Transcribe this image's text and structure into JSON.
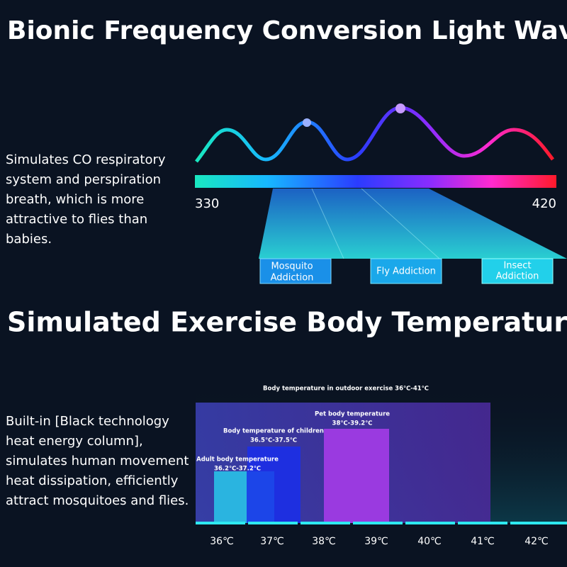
{
  "section1": {
    "title": "Bionic Frequency Conversion Light Wave",
    "description_lines": [
      "Simulates CO  respiratory",
      "system and perspiration",
      "breath, which is more",
      "attractive to flies than",
      "babies."
    ],
    "scale_min": "330",
    "scale_max": "420",
    "tags": [
      [
        "Mosquito",
        "Addiction"
      ],
      [
        "Fly Addiction"
      ],
      [
        "Insect",
        "Addiction"
      ]
    ]
  },
  "section2": {
    "title": "Simulated Exercise Body Temperature",
    "description_lines": [
      "Built-in [Black technology",
      "heat energy column],",
      "simulates human movement",
      "heat dissipation, efficiently",
      "attract mosquitoes and flies."
    ],
    "chart_title": "Body temperature in outdoor exercise 36℃-41℃",
    "bars": [
      {
        "label": "Adult body temperature",
        "range": "36.2℃-37.2℃"
      },
      {
        "label": "Body temperature of children",
        "range": "36.5℃-37.5℃"
      },
      {
        "label": "Pet body temperature",
        "range": "38℃-39.2℃"
      }
    ],
    "axis_labels": [
      "36℃",
      "37℃",
      "38℃",
      "39℃",
      "40℃",
      "41℃",
      "42℃"
    ]
  }
}
